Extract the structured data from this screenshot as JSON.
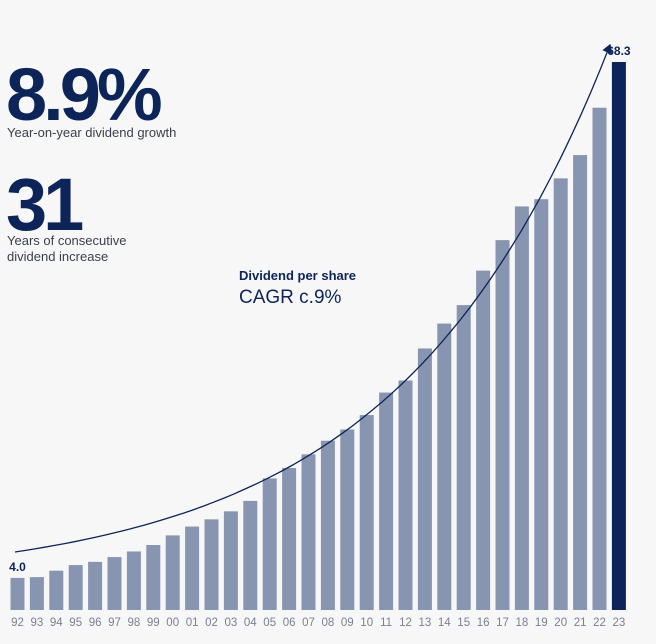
{
  "stats": [
    {
      "value": "8.9%",
      "label": "Year-on-year dividend growth"
    },
    {
      "value": "31",
      "label_line1": "Years of consecutive",
      "label_line2": "dividend increase"
    }
  ],
  "colors": {
    "bar": "#8895b0",
    "highlight_bar": "#0d2458",
    "text_dark": "#0d2458",
    "tick": "#7a8090"
  },
  "chart_data": {
    "type": "bar",
    "title": "Dividend per share",
    "subtitle": "CAGR c.9%",
    "categories": [
      "92",
      "93",
      "94",
      "95",
      "96",
      "97",
      "98",
      "99",
      "00",
      "01",
      "02",
      "03",
      "04",
      "05",
      "06",
      "07",
      "08",
      "09",
      "10",
      "11",
      "12",
      "13",
      "14",
      "15",
      "16",
      "17",
      "18",
      "19",
      "20",
      "21",
      "22",
      "23"
    ],
    "values": [
      4.0,
      4.1,
      4.9,
      5.6,
      6.0,
      6.6,
      7.3,
      8.1,
      9.3,
      10.4,
      11.3,
      12.3,
      13.6,
      16.4,
      17.7,
      19.4,
      21.1,
      22.5,
      24.3,
      27.1,
      28.6,
      32.6,
      35.7,
      38.0,
      42.3,
      46.1,
      50.3,
      51.2,
      53.8,
      56.7,
      62.6,
      68.3
    ],
    "data_labels": [
      {
        "index": 0,
        "text": "4.0"
      },
      {
        "index": 31,
        "text": "68.3"
      }
    ],
    "highlight_index": 31,
    "trend_line": "exponential",
    "ylim": [
      0,
      68.3
    ],
    "grid": false,
    "xlabel": "",
    "ylabel": ""
  }
}
